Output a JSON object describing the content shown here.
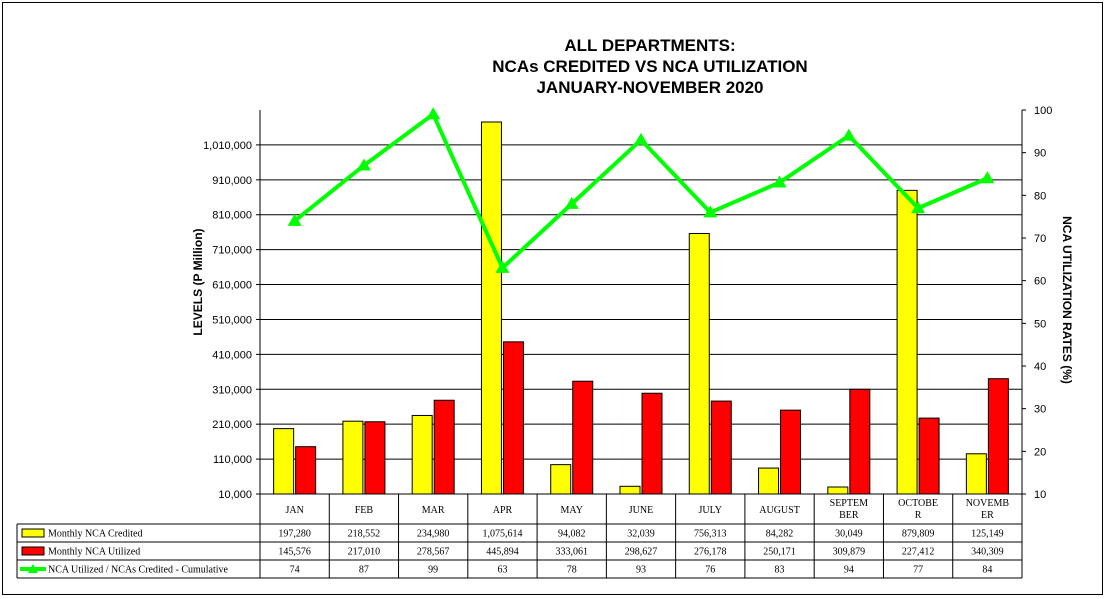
{
  "chart_data": {
    "type": "bar",
    "title_lines": [
      "ALL DEPARTMENTS:",
      "NCAs CREDITED VS NCA UTILIZATION",
      "JANUARY-NOVEMBER 2020"
    ],
    "ylabel": "LEVELS  (P Million)",
    "y2label": "NCA UTILIZATION  RATES (%)",
    "ylim": [
      10000,
      1110000
    ],
    "y_ticks": [
      "10,000",
      "110,000",
      "210,000",
      "310,000",
      "410,000",
      "510,000",
      "610,000",
      "710,000",
      "810,000",
      "910,000",
      "1,010,000"
    ],
    "y2lim": [
      10,
      100
    ],
    "y2_ticks": [
      "10",
      "20",
      "30",
      "40",
      "50",
      "60",
      "70",
      "80",
      "90",
      "100"
    ],
    "grid": true,
    "categories": [
      "JAN",
      "FEB",
      "MAR",
      "APR",
      "MAY",
      "JUNE",
      "JULY",
      "AUGUST",
      "SEPTEM BER",
      "OCTOBE R",
      "NOVEMB ER"
    ],
    "category_lines": [
      [
        "JAN"
      ],
      [
        "FEB"
      ],
      [
        "MAR"
      ],
      [
        "APR"
      ],
      [
        "MAY"
      ],
      [
        "JUNE"
      ],
      [
        "JULY"
      ],
      [
        "AUGUST"
      ],
      [
        "SEPTEM",
        "BER"
      ],
      [
        "OCTOBE",
        "R"
      ],
      [
        "NOVEMB",
        "ER"
      ]
    ],
    "series": [
      {
        "name": "Monthly NCA Credited",
        "kind": "bar",
        "color": "#FFFF00",
        "values": [
          197280,
          218552,
          234980,
          1075614,
          94082,
          32039,
          756313,
          84282,
          30049,
          879809,
          125149
        ],
        "labels": [
          "197,280",
          "218,552",
          "234,980",
          "1,075,614",
          "94,082",
          "32,039",
          "756,313",
          "84,282",
          "30,049",
          "879,809",
          "125,149"
        ]
      },
      {
        "name": "Monthly NCA Utilized",
        "kind": "bar",
        "color": "#FF0000",
        "values": [
          145576,
          217010,
          278567,
          445894,
          333061,
          298627,
          276178,
          250171,
          309879,
          227412,
          340309
        ],
        "labels": [
          "145,576",
          "217,010",
          "278,567",
          "445,894",
          "333,061",
          "298,627",
          "276,178",
          "250,171",
          "309,879",
          "227,412",
          "340,309"
        ]
      },
      {
        "name": "NCA Utilized / NCAs Credited - Cumulative",
        "kind": "line",
        "axis": "right",
        "color": "#00FF00",
        "values": [
          74,
          87,
          99,
          63,
          78,
          93,
          76,
          83,
          94,
          77,
          84
        ],
        "labels": [
          "74",
          "87",
          "99",
          "63",
          "78",
          "93",
          "76",
          "83",
          "94",
          "77",
          "84"
        ]
      }
    ]
  }
}
